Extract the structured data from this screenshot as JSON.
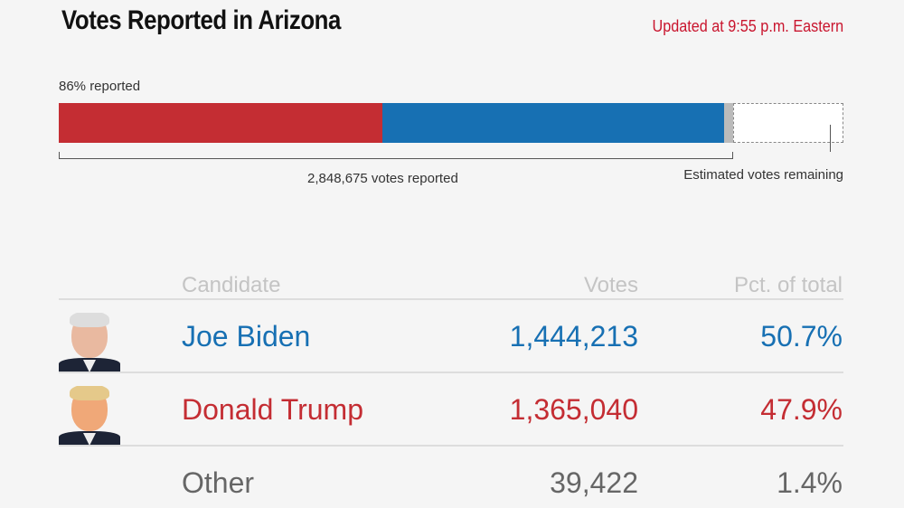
{
  "header": {
    "title": "Votes Reported in Arizona",
    "updated": "Updated at 9:55 p.m. Eastern"
  },
  "progress": {
    "reported_label": "86% reported",
    "reported_fraction": 0.86,
    "votes_reported_label": "2,848,675 votes reported",
    "remaining_label": "Estimated votes remaining",
    "shares": [
      {
        "candidate": "Donald Trump",
        "pct": 47.9,
        "color": "#c42d33"
      },
      {
        "candidate": "Joe Biden",
        "pct": 50.7,
        "color": "#1770b3"
      },
      {
        "candidate": "Other",
        "pct": 1.4,
        "color": "#bbbbbb"
      }
    ]
  },
  "table": {
    "headers": {
      "candidate": "Candidate",
      "votes": "Votes",
      "pct": "Pct. of total"
    },
    "rows": [
      {
        "name": "Joe Biden",
        "votes": "1,444,213",
        "pct": "50.7%",
        "color": "#1770b3",
        "avatar": "biden-photo"
      },
      {
        "name": "Donald Trump",
        "votes": "1,365,040",
        "pct": "47.9%",
        "color": "#c42d33",
        "avatar": "trump-photo"
      },
      {
        "name": "Other",
        "votes": "39,422",
        "pct": "1.4%",
        "color": "#666666"
      }
    ]
  }
}
